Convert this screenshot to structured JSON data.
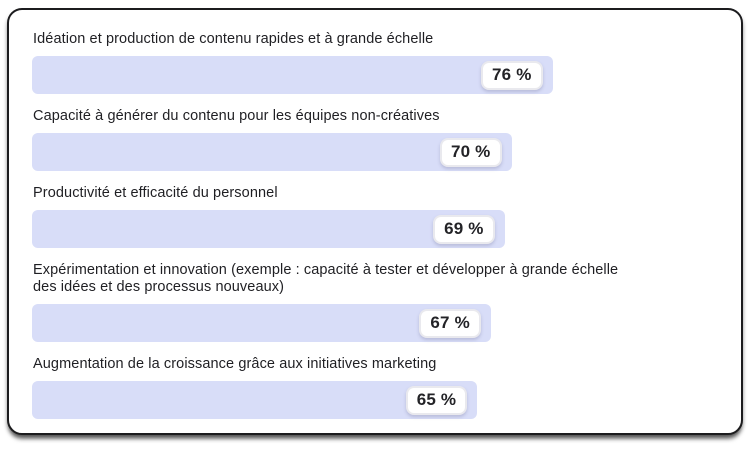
{
  "chart_data": {
    "type": "bar",
    "orientation": "horizontal",
    "title": "",
    "xlabel": "",
    "ylabel": "",
    "xlim": [
      0,
      100
    ],
    "unit": "%",
    "grid": false,
    "legend": "none",
    "bar_color": "#d8ddf8",
    "categories": [
      "Idéation et production de contenu rapides et à grande échelle",
      "Capacité à générer du contenu pour les équipes non-créatives",
      "Productivité et efficacité du personnel",
      "Expérimentation et innovation (exemple : capacité à tester et développer à grande échelle des idées et des processus nouveaux)",
      "Augmentation de la croissance grâce aux initiatives marketing"
    ],
    "values": [
      76,
      70,
      69,
      67,
      65
    ],
    "items": [
      {
        "label": "Idéation et production de contenu rapides et à grande échelle",
        "value": 76,
        "value_label": "76 %"
      },
      {
        "label": "Capacité à générer du contenu pour les équipes non-créatives",
        "value": 70,
        "value_label": "70 %"
      },
      {
        "label": "Productivité et efficacité du personnel",
        "value": 69,
        "value_label": "69 %"
      },
      {
        "label": "Expérimentation et innovation (exemple : capacité à tester et développer à grande échelle\ndes idées et des processus nouveaux)",
        "value": 67,
        "value_label": "67 %"
      },
      {
        "label": "Augmentation de la croissance grâce aux initiatives marketing",
        "value": 65,
        "value_label": "65 %"
      }
    ]
  }
}
